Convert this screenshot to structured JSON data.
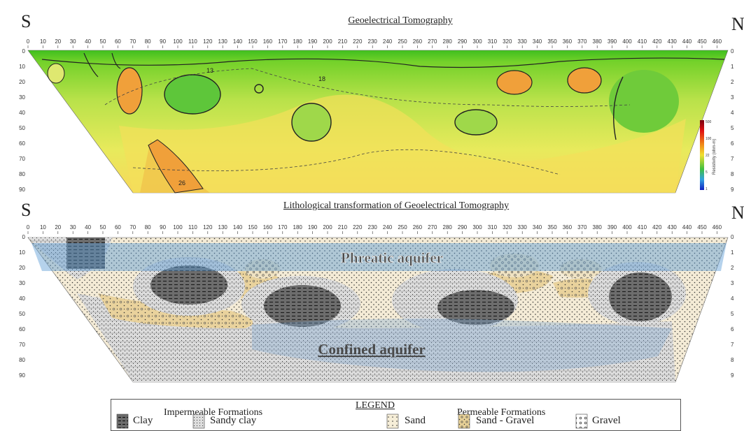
{
  "top": {
    "title": "Geoelectrical Tomography",
    "left_dir": "S",
    "right_dir": "N",
    "colorbar_label": "Resistivity (ohm-m)",
    "colorbar_ticks": [
      "500",
      "100",
      "22",
      "5",
      "1"
    ],
    "contour_labels": [
      "26",
      "18",
      "13"
    ]
  },
  "bottom": {
    "title": "Lithological transformation of Geoelectrical Tomography",
    "left_dir": "S",
    "right_dir": "N",
    "phreatic_label": "Phreatic aquifer",
    "confined_label": "Confined aquifer"
  },
  "axes": {
    "x_ticks": [
      "0",
      "10",
      "20",
      "30",
      "40",
      "50",
      "60",
      "70",
      "80",
      "90",
      "100",
      "110",
      "120",
      "130",
      "140",
      "150",
      "160",
      "170",
      "180",
      "190",
      "200",
      "210",
      "220",
      "230",
      "240",
      "250",
      "260",
      "270",
      "280",
      "290",
      "300",
      "310",
      "320",
      "330",
      "340",
      "350",
      "360",
      "370",
      "380",
      "390",
      "400",
      "410",
      "420",
      "430",
      "440",
      "450",
      "460"
    ],
    "y_ticks": [
      "0",
      "10",
      "20",
      "30",
      "40",
      "50",
      "60",
      "70",
      "80",
      "90"
    ],
    "right_y_ticks": [
      "0",
      "1",
      "2",
      "3",
      "4",
      "5",
      "6",
      "7",
      "8",
      "9"
    ]
  },
  "legend": {
    "title": "LEGEND",
    "impermeable_header": "Impermeable Formations",
    "permeable_header": "Permeable Formations",
    "items": {
      "clay": "Clay",
      "sandy_clay": "Sandy clay",
      "sand": "Sand",
      "sand_gravel": "Sand - Gravel",
      "gravel": "Gravel"
    }
  }
}
